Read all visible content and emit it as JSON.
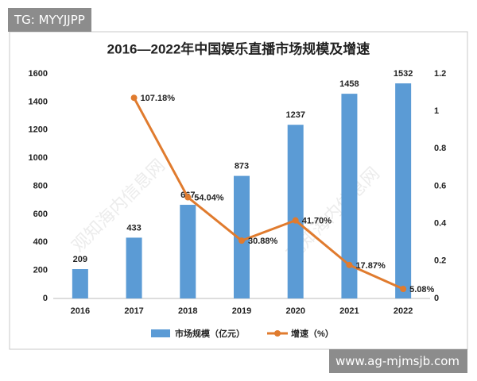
{
  "badge": "TG: MYYJJPP",
  "footer_url": "www.ag-mjmsjb.com",
  "watermark": "观知海内信息网",
  "chart_data": {
    "type": "bar",
    "title": "2016—2022年中国娱乐直播市场规模及增速",
    "categories": [
      "2016",
      "2017",
      "2018",
      "2019",
      "2020",
      "2021",
      "2022"
    ],
    "series": [
      {
        "name": "市场规模（亿元）",
        "type": "bar",
        "color": "#5b9bd5",
        "values": [
          209,
          433,
          667,
          873,
          1237,
          1458,
          1532
        ]
      },
      {
        "name": "增速（%）",
        "type": "line",
        "axis": "y2",
        "color": "#e07b2e",
        "values": [
          null,
          1.0718,
          0.5404,
          0.3088,
          0.417,
          0.1787,
          0.0508
        ],
        "value_labels": [
          null,
          "107.18%",
          "54.04%",
          "30.88%",
          "41.70%",
          "17.87%",
          "5.08%"
        ]
      }
    ],
    "ylim": [
      0,
      1600
    ],
    "yticks": [
      0,
      200,
      400,
      600,
      800,
      1000,
      1200,
      1400,
      1600
    ],
    "y2lim": [
      0,
      1.2
    ],
    "y2ticks": [
      0,
      0.2,
      0.4,
      0.6,
      0.8,
      1,
      1.2
    ],
    "grid": false,
    "legend": "bottom"
  }
}
